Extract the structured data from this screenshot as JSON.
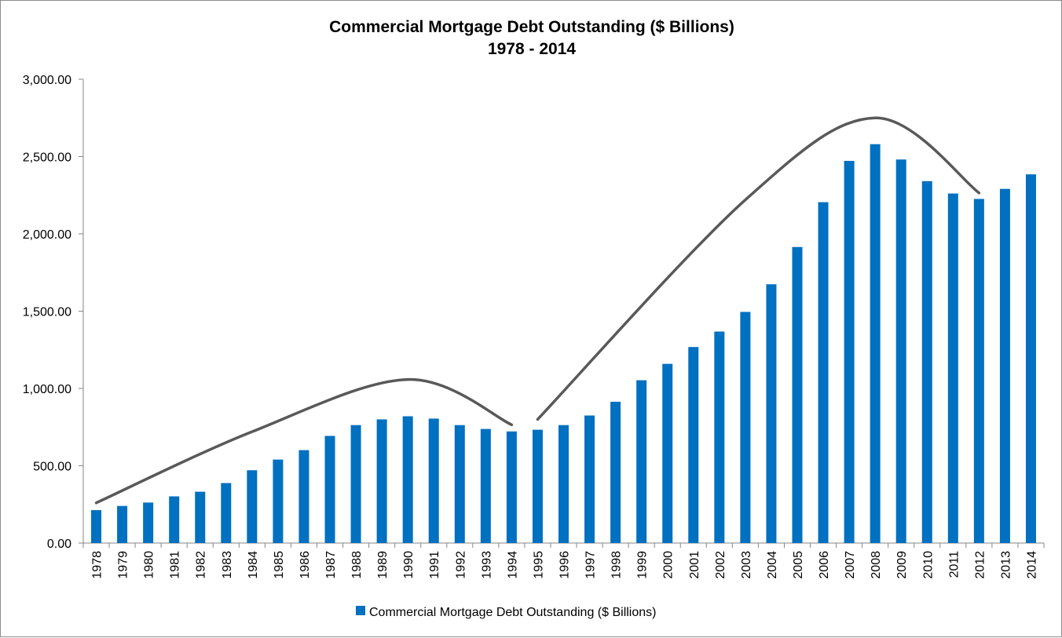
{
  "chart_data": {
    "type": "bar",
    "title": "Commercial Mortgage Debt Outstanding  ($ Billions)",
    "subtitle": "1978 - 2014",
    "xlabel": "",
    "ylabel": "",
    "ylim": [
      0,
      3000
    ],
    "yticks": [
      0,
      500,
      1000,
      1500,
      2000,
      2500,
      3000
    ],
    "ytick_labels": [
      "0.00",
      "500.00",
      "1,000.00",
      "1,500.00",
      "2,000.00",
      "2,500.00",
      "3,000.00"
    ],
    "grid": false,
    "legend_position": "bottom",
    "categories": [
      "1978",
      "1979",
      "1980",
      "1981",
      "1982",
      "1983",
      "1984",
      "1985",
      "1986",
      "1987",
      "1988",
      "1989",
      "1990",
      "1991",
      "1992",
      "1993",
      "1994",
      "1995",
      "1996",
      "1997",
      "1998",
      "1999",
      "2000",
      "2001",
      "2002",
      "2003",
      "2004",
      "2005",
      "2006",
      "2007",
      "2008",
      "2009",
      "2010",
      "2011",
      "2012",
      "2013",
      "2014"
    ],
    "series": [
      {
        "name": "Commercial Mortgage Debt Outstanding ($ Billions)",
        "color": "#0070c0",
        "values": [
          213,
          240,
          262,
          302,
          332,
          388,
          471,
          540,
          601,
          693,
          763,
          800,
          820,
          805,
          763,
          738,
          722,
          733,
          763,
          825,
          914,
          1053,
          1159,
          1268,
          1368,
          1495,
          1674,
          1915,
          2205,
          2472,
          2580,
          2481,
          2341,
          2261,
          2226,
          2291,
          2385
        ]
      }
    ],
    "annotations": [
      {
        "type": "trend-arc",
        "color": "#595959",
        "points": [
          [
            "1978",
            260
          ],
          [
            "1984",
            720
          ],
          [
            "1990",
            1058
          ],
          [
            "1994",
            765
          ]
        ]
      },
      {
        "type": "trend-arc",
        "color": "#595959",
        "points": [
          [
            "1995",
            800
          ],
          [
            "2003",
            2220
          ],
          [
            "2008",
            2750
          ],
          [
            "2012",
            2265
          ]
        ]
      }
    ]
  }
}
